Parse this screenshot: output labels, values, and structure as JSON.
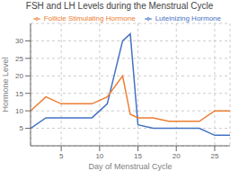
{
  "chart_data": {
    "type": "line",
    "title": "FSH and LH Levels during the Menstrual Cycle",
    "x_label": "Day of Menstrual Cycle",
    "y_label": "Hormone Level",
    "x": [
      1,
      3,
      5,
      7,
      9,
      11,
      13,
      14,
      15,
      17,
      19,
      21,
      23,
      25,
      27
    ],
    "series": [
      {
        "name": "Luteinizing Hormone",
        "color": "#4472c4",
        "values": [
          5,
          8,
          8,
          8,
          8,
          12,
          30,
          32,
          6,
          5,
          5,
          5,
          5,
          3,
          3
        ]
      },
      {
        "name": "Follicle Stimulating Hormone",
        "color": "#ed7d31",
        "values": [
          10,
          14,
          12,
          12,
          12,
          14,
          20,
          9,
          8,
          8,
          7,
          7,
          7,
          10,
          10
        ]
      }
    ],
    "xlim": [
      1,
      27
    ],
    "ylim": [
      0,
      35
    ],
    "xticks": [
      5,
      10,
      15,
      20,
      25
    ],
    "yticks": [
      5,
      10,
      15,
      20,
      25,
      30
    ],
    "grid": true,
    "legend": "upper right"
  }
}
